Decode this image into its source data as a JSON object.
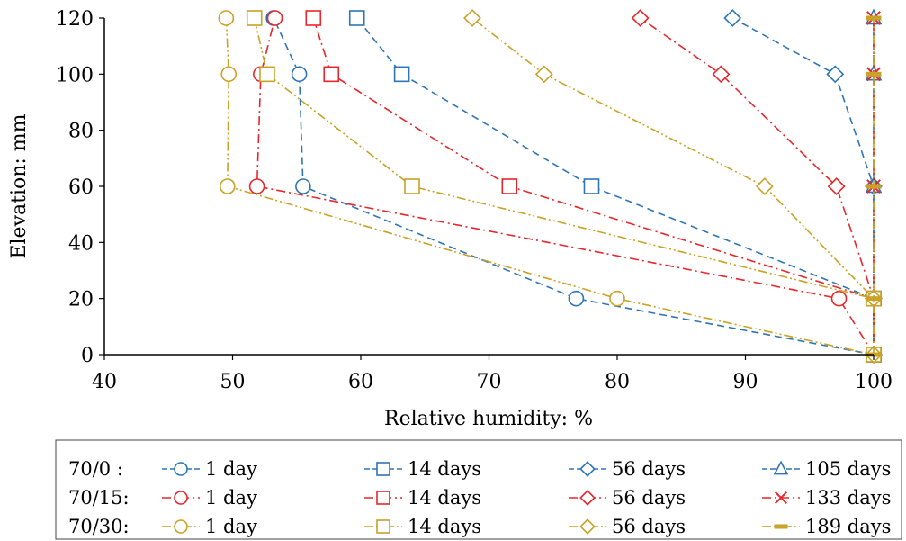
{
  "chart_data": {
    "type": "line",
    "xlabel": "Relative humidity: %",
    "ylabel": "Elevation: mm",
    "xlim": [
      40,
      100
    ],
    "ylim": [
      0,
      120
    ],
    "xticks": [
      "40",
      "50",
      "60",
      "70",
      "80",
      "90",
      "100"
    ],
    "yticks": [
      "0",
      "20",
      "40",
      "60",
      "80",
      "100",
      "120"
    ],
    "grid": false,
    "legend_position": "bottom",
    "legend_groups": [
      "70/0  :",
      "70/15:",
      "70/30:"
    ],
    "series": [
      {
        "name": "1 day",
        "group": 0,
        "color": "#2E75B6",
        "marker": "circle",
        "dash": "8,5",
        "x": [
          100,
          76.8,
          55.5,
          55.2,
          53.2
        ],
        "y": [
          0,
          20,
          60,
          100,
          120
        ]
      },
      {
        "name": "14 days",
        "group": 0,
        "color": "#2E75B6",
        "marker": "square",
        "dash": "8,5",
        "x": [
          100,
          100,
          78,
          63.2,
          59.7
        ],
        "y": [
          0,
          20,
          60,
          100,
          120
        ]
      },
      {
        "name": "56 days",
        "group": 0,
        "color": "#2E75B6",
        "marker": "diamond",
        "dash": "8,5",
        "x": [
          100,
          100,
          100,
          97,
          89
        ],
        "y": [
          0,
          20,
          60,
          100,
          120
        ]
      },
      {
        "name": "105 days",
        "group": 0,
        "color": "#2E75B6",
        "marker": "triangle",
        "dash": "8,5",
        "x": [
          100,
          100,
          100,
          100,
          100
        ],
        "y": [
          0,
          20,
          60,
          100,
          120
        ]
      },
      {
        "name": "1 day",
        "group": 1,
        "color": "#E8262B",
        "marker": "circle",
        "dash": "10,4,2,4",
        "x": [
          100,
          97.3,
          51.9,
          52.2,
          53.3
        ],
        "y": [
          0,
          20,
          60,
          100,
          120
        ]
      },
      {
        "name": "14 days",
        "group": 1,
        "color": "#E8262B",
        "marker": "square",
        "dash": "10,4,2,4",
        "x": [
          100,
          100,
          71.6,
          57.7,
          56.3
        ],
        "y": [
          0,
          20,
          60,
          100,
          120
        ]
      },
      {
        "name": "56 days",
        "group": 1,
        "color": "#E8262B",
        "marker": "diamond",
        "dash": "10,4,2,4",
        "x": [
          100,
          100,
          97.1,
          88.1,
          81.8
        ],
        "y": [
          0,
          20,
          60,
          100,
          120
        ]
      },
      {
        "name": "133 days",
        "group": 1,
        "color": "#E8262B",
        "marker": "x",
        "dash": "10,4,2,4",
        "x": [
          100,
          100,
          100,
          100,
          100
        ],
        "y": [
          0,
          20,
          60,
          100,
          120
        ]
      },
      {
        "name": "1 day",
        "group": 2,
        "color": "#C9A227",
        "marker": "circle",
        "dash": "10,3,2,3,2,3",
        "x": [
          100,
          80,
          49.6,
          49.7,
          49.5
        ],
        "y": [
          0,
          20,
          60,
          100,
          120
        ]
      },
      {
        "name": "14 days",
        "group": 2,
        "color": "#C9A227",
        "marker": "square",
        "dash": "10,3,2,3,2,3",
        "x": [
          100,
          100,
          64,
          52.7,
          51.7
        ],
        "y": [
          0,
          20,
          60,
          100,
          120
        ]
      },
      {
        "name": "56 days",
        "group": 2,
        "color": "#C9A227",
        "marker": "diamond",
        "dash": "10,3,2,3,2,3",
        "x": [
          100,
          100,
          91.5,
          74.3,
          68.7
        ],
        "y": [
          0,
          20,
          60,
          100,
          120
        ]
      },
      {
        "name": "189 days",
        "group": 2,
        "color": "#C9A227",
        "marker": "dash",
        "dash": "10,3,2,3,2,3",
        "x": [
          100,
          100,
          100,
          100,
          100
        ],
        "y": [
          0,
          20,
          60,
          100,
          120
        ]
      }
    ]
  }
}
